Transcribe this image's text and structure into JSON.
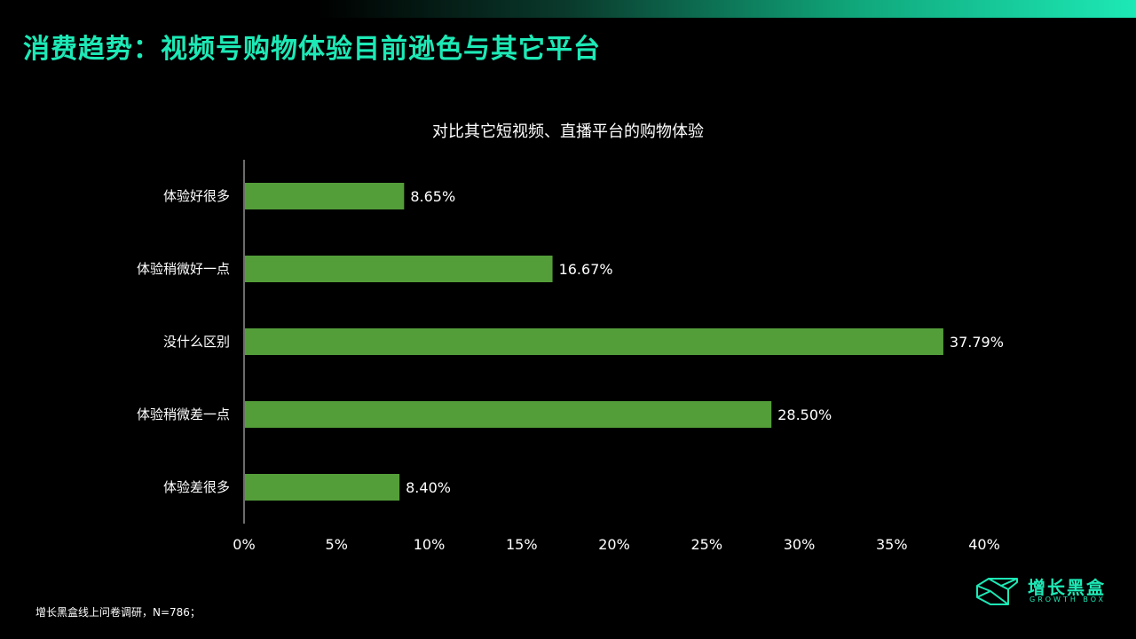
{
  "header": {
    "title": "消费趋势：视频号购物体验目前逊色与其它平台"
  },
  "colors": {
    "accent": "#1de9b6",
    "bar": "#549e3a",
    "background": "#000000"
  },
  "chart_data": {
    "type": "bar",
    "orientation": "horizontal",
    "title": "对比其它短视频、直播平台的购物体验",
    "categories": [
      "体验好很多",
      "体验稍微好一点",
      "没什么区别",
      "体验稍微差一点",
      "体验差很多"
    ],
    "values": [
      8.65,
      16.67,
      37.79,
      28.5,
      8.4
    ],
    "value_labels": [
      "8.65%",
      "16.67%",
      "37.79%",
      "28.50%",
      "8.40%"
    ],
    "xlim": [
      0,
      40
    ],
    "x_ticks": [
      0,
      5,
      10,
      15,
      20,
      25,
      30,
      35,
      40
    ],
    "x_tick_labels": [
      "0%",
      "5%",
      "10%",
      "15%",
      "20%",
      "25%",
      "30%",
      "35%",
      "40%"
    ],
    "xlabel": "",
    "ylabel": "",
    "grid": false,
    "legend": "none"
  },
  "footer": {
    "source_note": "增长黑盒线上问卷调研，N=786；"
  },
  "logo": {
    "name": "增长黑盒",
    "subtitle": "GROWTH BOX",
    "icon": "growth-box-cube-icon"
  }
}
